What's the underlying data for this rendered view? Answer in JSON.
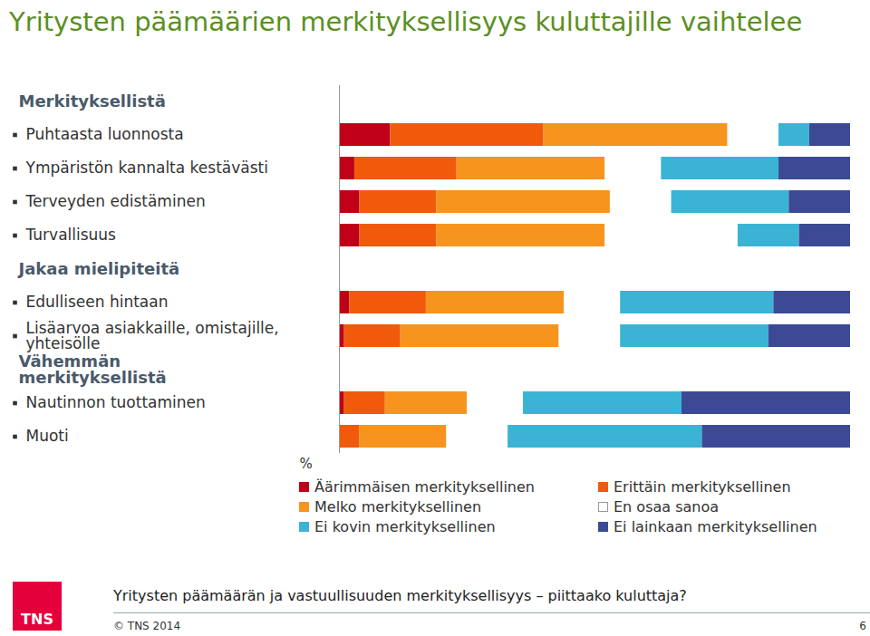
{
  "chart_data": {
    "type": "bar",
    "orientation": "horizontal",
    "stacked": true,
    "tick_labels": false,
    "title": "Yritysten päämäärien merkityksellisyys kuluttajille vaihtelee",
    "xlabel": "%",
    "xlim": [
      0,
      100
    ],
    "groups": [
      {
        "name": "Merkityksellistä",
        "categories": [
          "Puhtaasta luonnosta",
          "Ympäristön kannalta kestävästi",
          "Terveyden edistäminen",
          "Turvallisuus"
        ]
      },
      {
        "name": "Jakaa mielipiteitä",
        "categories": [
          "Edulliseen hintaan",
          "Lisäarvoa asiakkaille, omistajille, yhteisölle"
        ]
      },
      {
        "name": "Vähemmän merkityksellistä",
        "categories": [
          "Nautinnon tuottaminen",
          "Muoti"
        ]
      }
    ],
    "series": [
      {
        "name": "Äärimmäisen merkityksellinen",
        "color": "#c00018",
        "values": [
          10,
          3,
          4,
          4,
          2,
          1,
          1,
          0
        ]
      },
      {
        "name": "Erittäin merkityksellinen",
        "color": "#f05a0a",
        "values": [
          30,
          20,
          15,
          15,
          15,
          11,
          8,
          4
        ]
      },
      {
        "name": "Melko merkityksellinen",
        "color": "#f7941e",
        "values": [
          36,
          29,
          34,
          33,
          27,
          31,
          16,
          17
        ]
      },
      {
        "name": "En osaa sanoa",
        "color": "#ffffff",
        "values": [
          10,
          11,
          12,
          26,
          11,
          12,
          11,
          12
        ]
      },
      {
        "name": "Ei kovin merkityksellinen",
        "color": "#3bb3d4",
        "values": [
          6,
          23,
          23,
          12,
          30,
          29,
          31,
          38
        ]
      },
      {
        "name": "Ei lainkaan merkityksellinen",
        "color": "#3c4a96",
        "values": [
          8,
          14,
          12,
          10,
          15,
          16,
          33,
          29
        ]
      }
    ]
  },
  "footer": {
    "text": "Yritysten päämäärän ja vastuullisuuden merkityksellisyys – piittaako kuluttaja?",
    "copyright": "© TNS 2014",
    "page": 6,
    "logo": "TNS"
  }
}
